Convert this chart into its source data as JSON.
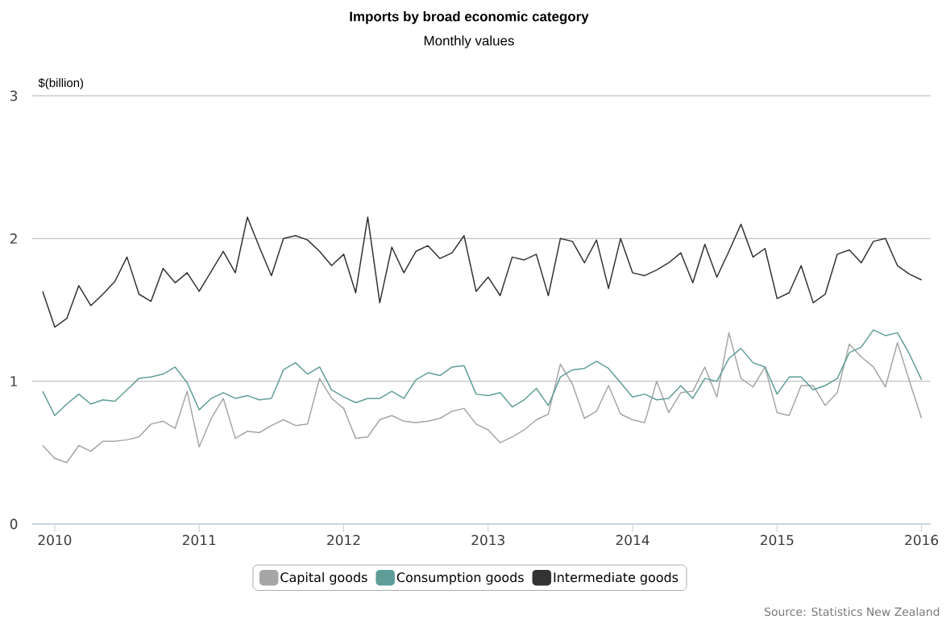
{
  "chart_data": {
    "type": "line",
    "title": "Imports by broad economic category",
    "subtitle": "Monthly values",
    "ylabel": "$(billion)",
    "x": [
      "2009-12",
      "2010-01",
      "2010-02",
      "2010-03",
      "2010-04",
      "2010-05",
      "2010-06",
      "2010-07",
      "2010-08",
      "2010-09",
      "2010-10",
      "2010-11",
      "2010-12",
      "2011-01",
      "2011-02",
      "2011-03",
      "2011-04",
      "2011-05",
      "2011-06",
      "2011-07",
      "2011-08",
      "2011-09",
      "2011-10",
      "2011-11",
      "2011-12",
      "2012-01",
      "2012-02",
      "2012-03",
      "2012-04",
      "2012-05",
      "2012-06",
      "2012-07",
      "2012-08",
      "2012-09",
      "2012-10",
      "2012-11",
      "2012-12",
      "2013-01",
      "2013-02",
      "2013-03",
      "2013-04",
      "2013-05",
      "2013-06",
      "2013-07",
      "2013-08",
      "2013-09",
      "2013-10",
      "2013-11",
      "2013-12",
      "2014-01",
      "2014-02",
      "2014-03",
      "2014-04",
      "2014-05",
      "2014-06",
      "2014-07",
      "2014-08",
      "2014-09",
      "2014-10",
      "2014-11",
      "2014-12",
      "2015-01",
      "2015-02",
      "2015-03",
      "2015-04",
      "2015-05",
      "2015-06",
      "2015-07",
      "2015-08",
      "2015-09",
      "2015-10",
      "2015-11",
      "2015-12",
      "2016-01"
    ],
    "series": [
      {
        "name": "Capital goods",
        "color": "#a6a6a6",
        "values": [
          0.55,
          0.46,
          0.43,
          0.55,
          0.51,
          0.58,
          0.58,
          0.59,
          0.61,
          0.7,
          0.72,
          0.67,
          0.93,
          0.54,
          0.74,
          0.88,
          0.6,
          0.65,
          0.64,
          0.69,
          0.73,
          0.69,
          0.7,
          1.02,
          0.88,
          0.81,
          0.6,
          0.61,
          0.73,
          0.76,
          0.72,
          0.71,
          0.72,
          0.74,
          0.79,
          0.81,
          0.7,
          0.66,
          0.57,
          0.61,
          0.66,
          0.73,
          0.77,
          1.12,
          0.98,
          0.74,
          0.79,
          0.97,
          0.77,
          0.73,
          0.71,
          1.0,
          0.78,
          0.92,
          0.93,
          1.1,
          0.89,
          1.34,
          1.02,
          0.96,
          1.1,
          0.78,
          0.76,
          0.97,
          0.97,
          0.83,
          0.92,
          1.26,
          1.17,
          1.1,
          0.96,
          1.27,
          1.0,
          0.74
        ]
      },
      {
        "name": "Consumption goods",
        "color": "#5f9e98",
        "values": [
          0.93,
          0.76,
          0.84,
          0.91,
          0.84,
          0.87,
          0.86,
          0.94,
          1.02,
          1.03,
          1.05,
          1.1,
          0.99,
          0.8,
          0.88,
          0.92,
          0.88,
          0.9,
          0.87,
          0.88,
          1.08,
          1.13,
          1.05,
          1.1,
          0.94,
          0.89,
          0.85,
          0.88,
          0.88,
          0.93,
          0.88,
          1.01,
          1.06,
          1.04,
          1.1,
          1.11,
          0.91,
          0.9,
          0.92,
          0.82,
          0.87,
          0.95,
          0.83,
          1.03,
          1.08,
          1.09,
          1.14,
          1.09,
          0.99,
          0.89,
          0.91,
          0.87,
          0.88,
          0.97,
          0.88,
          1.02,
          1.0,
          1.16,
          1.23,
          1.13,
          1.1,
          0.91,
          1.03,
          1.03,
          0.94,
          0.97,
          1.02,
          1.2,
          1.24,
          1.36,
          1.32,
          1.34,
          1.19,
          1.01
        ]
      },
      {
        "name": "Intermediate goods",
        "color": "#333333",
        "values": [
          1.63,
          1.38,
          1.44,
          1.67,
          1.53,
          1.61,
          1.7,
          1.87,
          1.61,
          1.56,
          1.79,
          1.69,
          1.76,
          1.63,
          1.77,
          1.91,
          1.76,
          2.15,
          1.94,
          1.74,
          2.0,
          2.02,
          1.99,
          1.91,
          1.81,
          1.89,
          1.62,
          2.15,
          1.55,
          1.94,
          1.76,
          1.91,
          1.95,
          1.86,
          1.9,
          2.02,
          1.63,
          1.73,
          1.6,
          1.87,
          1.85,
          1.89,
          1.6,
          2.0,
          1.98,
          1.83,
          1.99,
          1.65,
          2.0,
          1.76,
          1.74,
          1.78,
          1.83,
          1.9,
          1.69,
          1.96,
          1.73,
          1.91,
          2.1,
          1.87,
          1.93,
          1.58,
          1.62,
          1.81,
          1.55,
          1.61,
          1.89,
          1.92,
          1.83,
          1.98,
          2.0,
          1.81,
          1.75,
          1.71
        ]
      }
    ],
    "xlim": [
      "2009-11-05",
      "2016-01-24"
    ],
    "xticks": [
      "2010",
      "2011",
      "2012",
      "2013",
      "2014",
      "2015",
      "2016"
    ],
    "ylim": [
      0,
      3
    ],
    "yticks": [
      0,
      1,
      2,
      3
    ],
    "grid": "y",
    "legend": "bottom",
    "annotations": [
      "Source: Statistics New Zealand"
    ]
  }
}
